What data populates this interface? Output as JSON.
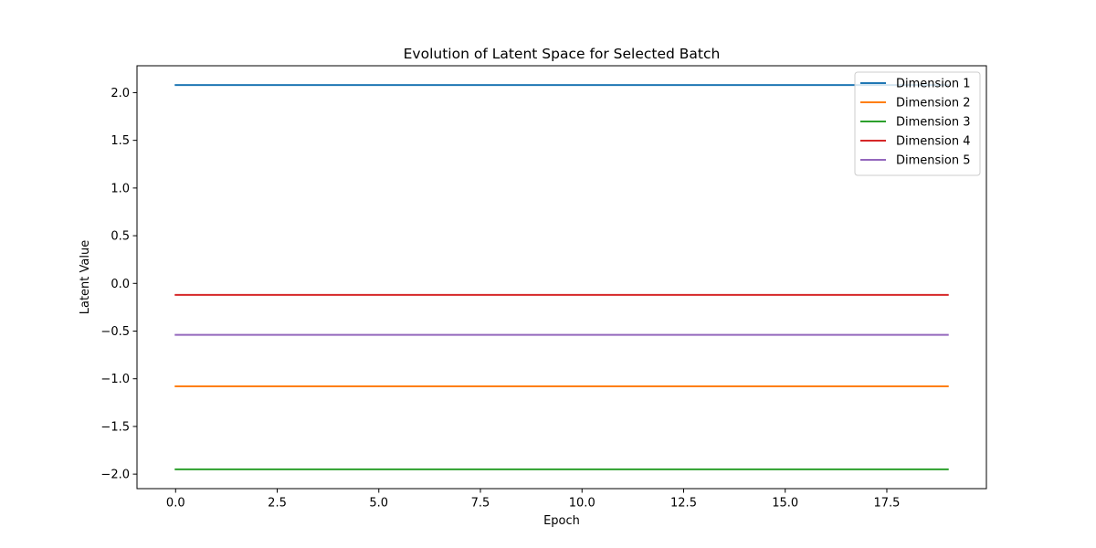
{
  "chart_data": {
    "type": "line",
    "title": "Evolution of Latent Space for Selected Batch",
    "xlabel": "Epoch",
    "ylabel": "Latent Value",
    "x": [
      0,
      1,
      2,
      3,
      4,
      5,
      6,
      7,
      8,
      9,
      10,
      11,
      12,
      13,
      14,
      15,
      16,
      17,
      18,
      19
    ],
    "xlim": [
      -0.95,
      19.95
    ],
    "ylim": [
      -2.152,
      2.282
    ],
    "xticks": [
      0.0,
      2.5,
      5.0,
      7.5,
      10.0,
      12.5,
      15.0,
      17.5
    ],
    "xtick_labels": [
      "0.0",
      "2.5",
      "5.0",
      "7.5",
      "10.0",
      "12.5",
      "15.0",
      "17.5"
    ],
    "yticks": [
      2.0,
      1.5,
      1.0,
      0.5,
      0.0,
      -0.5,
      -1.0,
      -1.5,
      -2.0
    ],
    "ytick_labels": [
      "2.0",
      "1.5",
      "1.0",
      "0.5",
      "0.0",
      "−0.5",
      "−1.0",
      "−1.5",
      "−2.0"
    ],
    "grid": false,
    "legend_position": "top-right",
    "series": [
      {
        "name": "Dimension 1",
        "color": "#1f77b4",
        "values": [
          2.08,
          2.08,
          2.08,
          2.08,
          2.08,
          2.08,
          2.08,
          2.08,
          2.08,
          2.08,
          2.08,
          2.08,
          2.08,
          2.08,
          2.08,
          2.08,
          2.08,
          2.08,
          2.08,
          2.08
        ]
      },
      {
        "name": "Dimension 2",
        "color": "#ff7f0e",
        "values": [
          -1.08,
          -1.08,
          -1.08,
          -1.08,
          -1.08,
          -1.08,
          -1.08,
          -1.08,
          -1.08,
          -1.08,
          -1.08,
          -1.08,
          -1.08,
          -1.08,
          -1.08,
          -1.08,
          -1.08,
          -1.08,
          -1.08,
          -1.08
        ]
      },
      {
        "name": "Dimension 3",
        "color": "#2ca02c",
        "values": [
          -1.95,
          -1.95,
          -1.95,
          -1.95,
          -1.95,
          -1.95,
          -1.95,
          -1.95,
          -1.95,
          -1.95,
          -1.95,
          -1.95,
          -1.95,
          -1.95,
          -1.95,
          -1.95,
          -1.95,
          -1.95,
          -1.95,
          -1.95
        ]
      },
      {
        "name": "Dimension 4",
        "color": "#d62728",
        "values": [
          -0.12,
          -0.12,
          -0.12,
          -0.12,
          -0.12,
          -0.12,
          -0.12,
          -0.12,
          -0.12,
          -0.12,
          -0.12,
          -0.12,
          -0.12,
          -0.12,
          -0.12,
          -0.12,
          -0.12,
          -0.12,
          -0.12,
          -0.12
        ]
      },
      {
        "name": "Dimension 5",
        "color": "#9467bd",
        "values": [
          -0.54,
          -0.54,
          -0.54,
          -0.54,
          -0.54,
          -0.54,
          -0.54,
          -0.54,
          -0.54,
          -0.54,
          -0.54,
          -0.54,
          -0.54,
          -0.54,
          -0.54,
          -0.54,
          -0.54,
          -0.54,
          -0.54,
          -0.54
        ]
      }
    ]
  }
}
